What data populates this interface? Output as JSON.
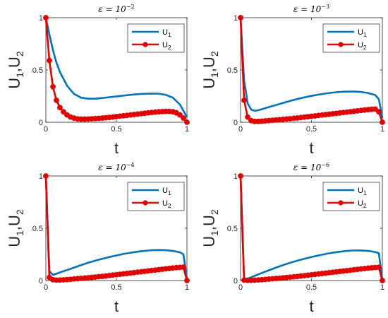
{
  "chart_data": [
    {
      "type": "line",
      "title_symbol": "ε = 10",
      "title_exponent": "−2",
      "xlabel": "t",
      "ylabel": "U",
      "ylabel_sub1": "1",
      "ylabel_sep": ",U",
      "ylabel_sub2": "2",
      "xlim": [
        0,
        1
      ],
      "ylim": [
        0,
        1
      ],
      "xticks": [
        "0",
        "0.5",
        "1"
      ],
      "yticks": [
        "0",
        "0.5",
        "1"
      ],
      "legend_position": "top-right",
      "series": [
        {
          "name": "U",
          "sub": "1",
          "color": "#0072BD",
          "marker": "none",
          "x": [
            0,
            0.025,
            0.05,
            0.075,
            0.1,
            0.15,
            0.2,
            0.25,
            0.3,
            0.35,
            0.4,
            0.45,
            0.5,
            0.55,
            0.6,
            0.65,
            0.7,
            0.75,
            0.8,
            0.85,
            0.9,
            0.95,
            1.0
          ],
          "y": [
            1.0,
            0.84,
            0.69,
            0.57,
            0.48,
            0.35,
            0.27,
            0.235,
            0.225,
            0.225,
            0.232,
            0.24,
            0.247,
            0.255,
            0.262,
            0.268,
            0.272,
            0.274,
            0.273,
            0.262,
            0.235,
            0.17,
            0.05
          ]
        },
        {
          "name": "U",
          "sub": "2",
          "color": "#E00000",
          "marker": "circle",
          "x": [
            0,
            0.025,
            0.05,
            0.075,
            0.1,
            0.125,
            0.15,
            0.175,
            0.2,
            0.225,
            0.25,
            0.275,
            0.3,
            0.325,
            0.35,
            0.375,
            0.4,
            0.425,
            0.45,
            0.475,
            0.5,
            0.525,
            0.55,
            0.575,
            0.6,
            0.625,
            0.65,
            0.675,
            0.7,
            0.725,
            0.75,
            0.775,
            0.8,
            0.825,
            0.85,
            0.875,
            0.9,
            0.925,
            0.95,
            0.975,
            1.0
          ],
          "y": [
            1.0,
            0.59,
            0.34,
            0.21,
            0.14,
            0.1,
            0.07,
            0.05,
            0.04,
            0.032,
            0.03,
            0.03,
            0.031,
            0.033,
            0.035,
            0.037,
            0.04,
            0.043,
            0.046,
            0.05,
            0.054,
            0.058,
            0.062,
            0.066,
            0.07,
            0.074,
            0.078,
            0.082,
            0.086,
            0.09,
            0.094,
            0.097,
            0.1,
            0.102,
            0.104,
            0.104,
            0.1,
            0.09,
            0.07,
            0.04,
            0.0
          ]
        }
      ]
    },
    {
      "type": "line",
      "title_symbol": "ε = 10",
      "title_exponent": "−3",
      "xlabel": "t",
      "ylabel": "U",
      "ylabel_sub1": "1",
      "ylabel_sep": ",U",
      "ylabel_sub2": "2",
      "xlim": [
        0,
        1
      ],
      "ylim": [
        0,
        1
      ],
      "xticks": [
        "0",
        "0.5",
        "1"
      ],
      "yticks": [
        "0",
        "0.5",
        "1"
      ],
      "legend_position": "top-right",
      "series": [
        {
          "name": "U",
          "sub": "1",
          "color": "#0072BD",
          "marker": "none",
          "x": [
            0,
            0.025,
            0.05,
            0.075,
            0.1,
            0.125,
            0.15,
            0.2,
            0.25,
            0.3,
            0.35,
            0.4,
            0.45,
            0.5,
            0.55,
            0.6,
            0.65,
            0.7,
            0.75,
            0.8,
            0.85,
            0.9,
            0.95,
            0.975,
            1.0
          ],
          "y": [
            1.0,
            0.4,
            0.18,
            0.12,
            0.11,
            0.115,
            0.125,
            0.145,
            0.165,
            0.185,
            0.205,
            0.222,
            0.238,
            0.252,
            0.264,
            0.275,
            0.284,
            0.29,
            0.293,
            0.293,
            0.29,
            0.28,
            0.26,
            0.22,
            0.04
          ]
        },
        {
          "name": "U",
          "sub": "2",
          "color": "#E00000",
          "marker": "circle",
          "x": [
            0,
            0.025,
            0.05,
            0.075,
            0.1,
            0.125,
            0.15,
            0.175,
            0.2,
            0.225,
            0.25,
            0.275,
            0.3,
            0.325,
            0.35,
            0.375,
            0.4,
            0.425,
            0.45,
            0.475,
            0.5,
            0.525,
            0.55,
            0.575,
            0.6,
            0.625,
            0.65,
            0.675,
            0.7,
            0.725,
            0.75,
            0.775,
            0.8,
            0.825,
            0.85,
            0.875,
            0.9,
            0.925,
            0.95,
            0.975,
            1.0
          ],
          "y": [
            1.0,
            0.21,
            0.05,
            0.015,
            0.008,
            0.008,
            0.01,
            0.013,
            0.016,
            0.019,
            0.022,
            0.025,
            0.028,
            0.031,
            0.034,
            0.038,
            0.041,
            0.045,
            0.049,
            0.053,
            0.057,
            0.061,
            0.065,
            0.069,
            0.073,
            0.077,
            0.081,
            0.085,
            0.089,
            0.093,
            0.097,
            0.101,
            0.105,
            0.109,
            0.113,
            0.117,
            0.121,
            0.124,
            0.126,
            0.1,
            0.0
          ]
        }
      ]
    },
    {
      "type": "line",
      "title_symbol": "ε = 10",
      "title_exponent": "−4",
      "xlabel": "t",
      "ylabel": "U",
      "ylabel_sub1": "1",
      "ylabel_sep": ",U",
      "ylabel_sub2": "2",
      "xlim": [
        0,
        1
      ],
      "ylim": [
        0,
        1
      ],
      "xticks": [
        "0",
        "0.5",
        "1"
      ],
      "yticks": [
        "0",
        "0.5",
        "1"
      ],
      "legend_position": "top-right",
      "series": [
        {
          "name": "U",
          "sub": "1",
          "color": "#0072BD",
          "marker": "none",
          "x": [
            0,
            0.025,
            0.05,
            0.075,
            0.1,
            0.15,
            0.2,
            0.25,
            0.3,
            0.35,
            0.4,
            0.45,
            0.5,
            0.55,
            0.6,
            0.65,
            0.7,
            0.75,
            0.8,
            0.85,
            0.9,
            0.95,
            0.975,
            1.0
          ],
          "y": [
            1.0,
            0.09,
            0.055,
            0.065,
            0.078,
            0.1,
            0.124,
            0.148,
            0.17,
            0.19,
            0.208,
            0.225,
            0.24,
            0.254,
            0.266,
            0.276,
            0.284,
            0.29,
            0.292,
            0.29,
            0.283,
            0.27,
            0.25,
            0.02
          ]
        },
        {
          "name": "U",
          "sub": "2",
          "color": "#E00000",
          "marker": "circle",
          "x": [
            0,
            0.025,
            0.05,
            0.075,
            0.1,
            0.125,
            0.15,
            0.175,
            0.2,
            0.225,
            0.25,
            0.275,
            0.3,
            0.325,
            0.35,
            0.375,
            0.4,
            0.425,
            0.45,
            0.475,
            0.5,
            0.525,
            0.55,
            0.575,
            0.6,
            0.625,
            0.65,
            0.675,
            0.7,
            0.725,
            0.75,
            0.775,
            0.8,
            0.825,
            0.85,
            0.875,
            0.9,
            0.925,
            0.95,
            0.975,
            1.0
          ],
          "y": [
            1.0,
            0.03,
            0.008,
            0.004,
            0.005,
            0.007,
            0.009,
            0.012,
            0.015,
            0.018,
            0.021,
            0.024,
            0.027,
            0.03,
            0.033,
            0.037,
            0.04,
            0.044,
            0.048,
            0.052,
            0.056,
            0.06,
            0.064,
            0.068,
            0.072,
            0.076,
            0.08,
            0.084,
            0.088,
            0.092,
            0.096,
            0.1,
            0.104,
            0.108,
            0.112,
            0.116,
            0.12,
            0.123,
            0.126,
            0.128,
            0.0
          ]
        }
      ]
    },
    {
      "type": "line",
      "title_symbol": "ε = 10",
      "title_exponent": "−6",
      "xlabel": "t",
      "ylabel": "U",
      "ylabel_sub1": "1",
      "ylabel_sep": ",U",
      "ylabel_sub2": "2",
      "xlim": [
        0,
        1
      ],
      "ylim": [
        0,
        1
      ],
      "xticks": [
        "0",
        "0.5",
        "1"
      ],
      "yticks": [
        "0",
        "0.5",
        "1"
      ],
      "legend_position": "top-right",
      "series": [
        {
          "name": "U",
          "sub": "1",
          "color": "#0072BD",
          "marker": "none",
          "x": [
            0,
            0.025,
            0.05,
            0.075,
            0.1,
            0.15,
            0.2,
            0.25,
            0.3,
            0.35,
            0.4,
            0.45,
            0.5,
            0.55,
            0.6,
            0.65,
            0.7,
            0.75,
            0.8,
            0.85,
            0.9,
            0.95,
            0.975,
            1.0
          ],
          "y": [
            1.0,
            0.005,
            0.018,
            0.032,
            0.045,
            0.072,
            0.098,
            0.124,
            0.148,
            0.17,
            0.19,
            0.208,
            0.225,
            0.24,
            0.254,
            0.266,
            0.276,
            0.284,
            0.288,
            0.288,
            0.284,
            0.272,
            0.262,
            0.005
          ]
        },
        {
          "name": "U",
          "sub": "2",
          "color": "#E00000",
          "marker": "circle",
          "x": [
            0,
            0.025,
            0.05,
            0.075,
            0.1,
            0.125,
            0.15,
            0.175,
            0.2,
            0.225,
            0.25,
            0.275,
            0.3,
            0.325,
            0.35,
            0.375,
            0.4,
            0.425,
            0.45,
            0.475,
            0.5,
            0.525,
            0.55,
            0.575,
            0.6,
            0.625,
            0.65,
            0.675,
            0.7,
            0.725,
            0.75,
            0.775,
            0.8,
            0.825,
            0.85,
            0.875,
            0.9,
            0.925,
            0.95,
            0.975,
            1.0
          ],
          "y": [
            1.0,
            0.004,
            0.002,
            0.003,
            0.004,
            0.006,
            0.008,
            0.011,
            0.014,
            0.017,
            0.02,
            0.023,
            0.026,
            0.029,
            0.032,
            0.036,
            0.039,
            0.043,
            0.047,
            0.051,
            0.055,
            0.059,
            0.063,
            0.067,
            0.071,
            0.075,
            0.079,
            0.083,
            0.087,
            0.091,
            0.095,
            0.099,
            0.103,
            0.107,
            0.111,
            0.115,
            0.119,
            0.122,
            0.125,
            0.127,
            0.0
          ]
        }
      ]
    }
  ]
}
